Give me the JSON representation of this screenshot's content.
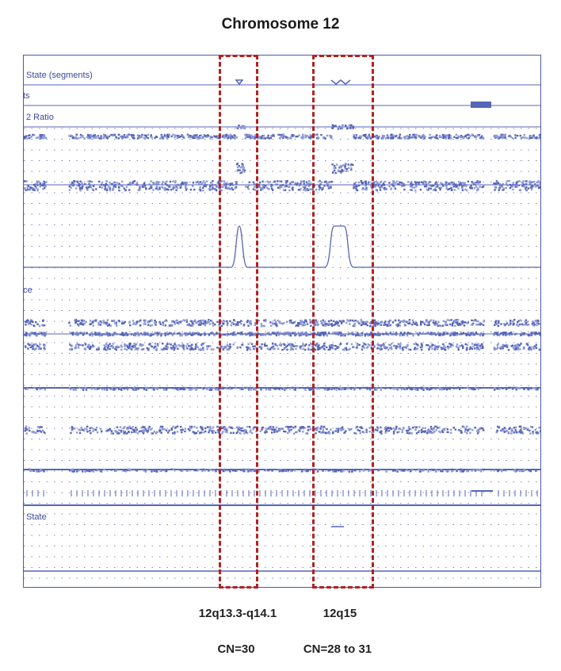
{
  "chart_data": {
    "type": "line",
    "title": "Chromosome 12",
    "tracks": [
      {
        "label": "State (segments)",
        "kind": "segments"
      },
      {
        "label": "ts",
        "kind": "segments"
      },
      {
        "label": "2 Ratio",
        "kind": "ratio"
      },
      {
        "label": "",
        "kind": "scatter"
      },
      {
        "label": "",
        "kind": "smooth"
      },
      {
        "label": "ce",
        "kind": "allele"
      },
      {
        "label": "",
        "kind": "scatter"
      },
      {
        "label": "",
        "kind": "scatter"
      },
      {
        "label": "",
        "kind": "scatter"
      },
      {
        "label": "State",
        "kind": "state"
      }
    ],
    "regions": [
      {
        "band": "12q13.3-q14.1",
        "copy_number": "CN=30"
      },
      {
        "band": "12q15",
        "copy_number": "CN=28 to 31"
      }
    ],
    "grid": true
  },
  "colors": {
    "data": "#5565b8",
    "data_light": "#8f9ad6",
    "region_box": "#b22222",
    "frame": "#4a5aa8"
  }
}
